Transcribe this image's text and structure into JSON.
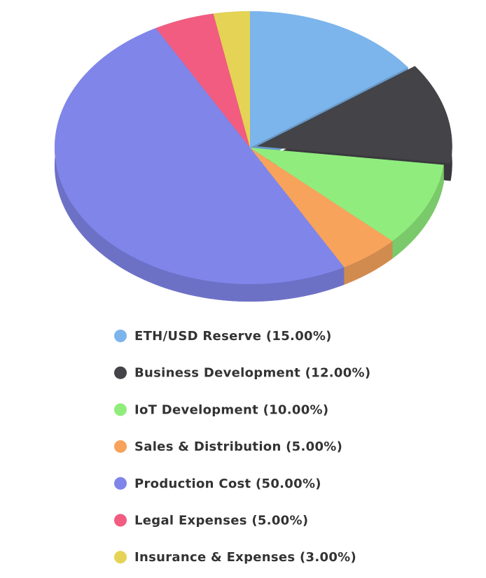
{
  "chart_data": {
    "type": "pie",
    "categories": [
      "ETH/USD Reserve (15.00%)",
      "Business Development (12.00%)",
      "IoT Development (10.00%)",
      "Sales & Distribution (5.00%)",
      "Production Cost (50.00%)",
      "Legal Expenses (5.00%)",
      "Insurance & Expenses (3.00%)"
    ],
    "values": [
      15,
      12,
      10,
      5,
      50,
      5,
      3
    ],
    "colors": [
      "#7cb5ec",
      "#434348",
      "#90ed7d",
      "#f7a35c",
      "#8085e9",
      "#f15c80",
      "#e4d354"
    ],
    "sliced": [
      false,
      true,
      false,
      false,
      false,
      false,
      false
    ]
  }
}
